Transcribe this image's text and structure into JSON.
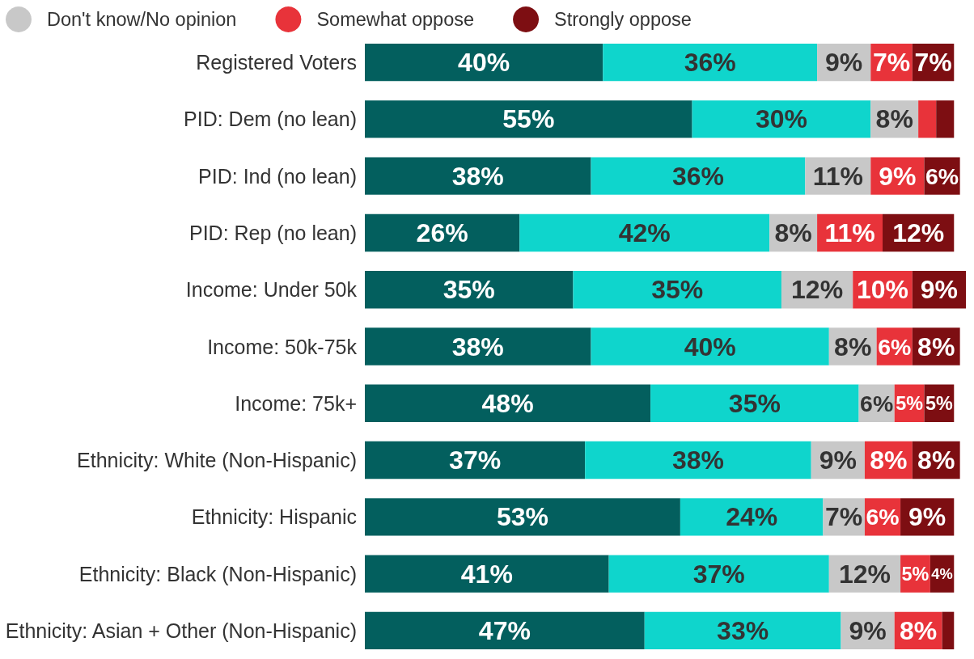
{
  "chart_data": {
    "type": "bar",
    "orientation": "horizontal",
    "stacked": true,
    "legend": "top left",
    "tick_labels": "y",
    "categories": [
      "Registered Voters",
      "PID: Dem (no lean)",
      "PID: Ind (no lean)",
      "PID: Rep (no lean)",
      "Income: Under 50k",
      "Income: 50k-75k",
      "Income: 75k+",
      "Ethnicity: White (Non-Hispanic)",
      "Ethnicity: Hispanic",
      "Ethnicity: Black (Non-Hispanic)",
      "Ethnicity: Asian + Other (Non-Hispanic)"
    ],
    "series": [
      {
        "color": "#035f5e",
        "values": [
          40,
          55,
          38,
          26,
          35,
          38,
          48,
          37,
          53,
          41,
          47
        ],
        "value_labels": [
          "40%",
          "55%",
          "38%",
          "26%",
          "35%",
          "38%",
          "48%",
          "37%",
          "53%",
          "41%",
          "47%"
        ]
      },
      {
        "color": "#0fd5cc",
        "values": [
          36,
          30,
          36,
          42,
          35,
          40,
          35,
          38,
          24,
          37,
          33
        ],
        "value_labels": [
          "36%",
          "30%",
          "36%",
          "42%",
          "35%",
          "40%",
          "35%",
          "38%",
          "24%",
          "37%",
          "33%"
        ]
      },
      {
        "name": "Don't know/No opinion",
        "color": "#c8c8c8",
        "values": [
          9,
          8,
          11,
          8,
          12,
          8,
          6,
          9,
          7,
          12,
          9
        ],
        "value_labels": [
          "9%",
          "8%",
          "11%",
          "8%",
          "12%",
          "8%",
          "6%",
          "9%",
          "7%",
          "12%",
          "9%"
        ]
      },
      {
        "name": "Somewhat oppose",
        "color": "#e8333a",
        "values": [
          7,
          3,
          9,
          11,
          10,
          6,
          5,
          8,
          6,
          5,
          8
        ],
        "value_labels": [
          "7%",
          null,
          "9%",
          "11%",
          "10%",
          "6%",
          "5%",
          "8%",
          "6%",
          "5%",
          "8%"
        ]
      },
      {
        "name": "Strongly oppose",
        "color": "#7d0e12",
        "values": [
          7,
          3,
          6,
          12,
          9,
          8,
          5,
          8,
          9,
          4,
          2
        ],
        "value_labels": [
          "7%",
          null,
          "6%",
          "12%",
          "9%",
          "8%",
          "5%",
          "8%",
          "9%",
          "4%",
          null
        ]
      }
    ]
  }
}
